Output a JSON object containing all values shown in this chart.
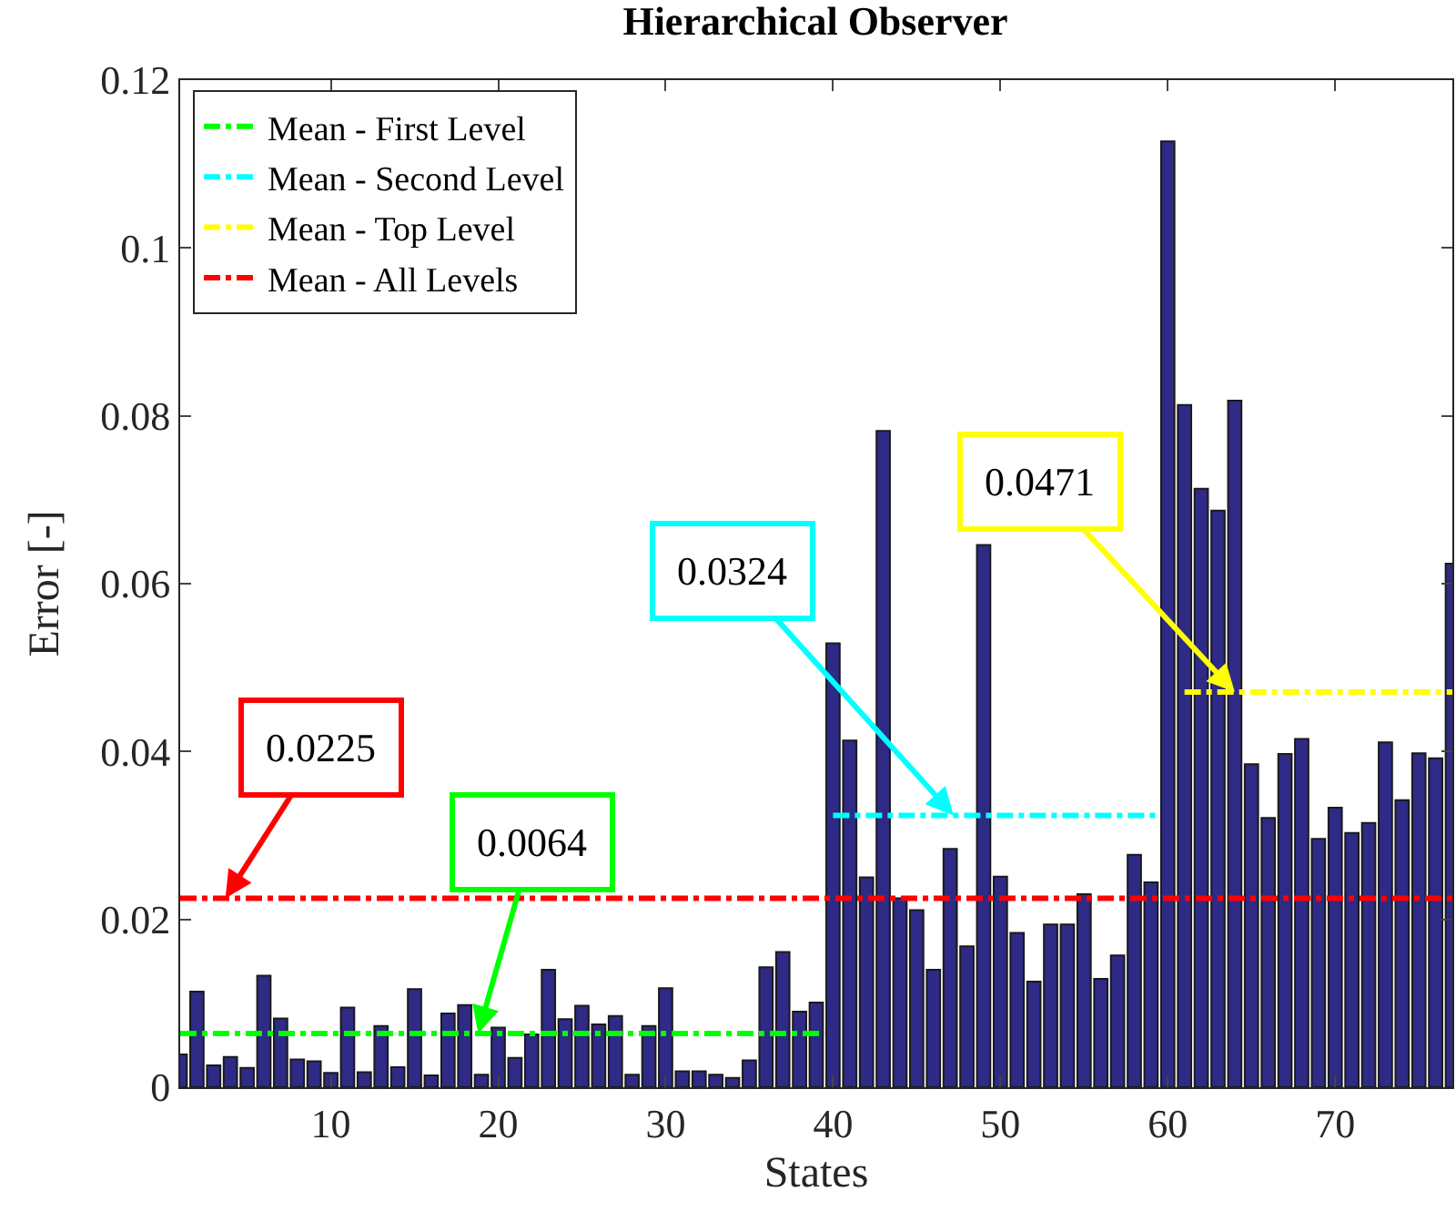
{
  "chart_data": {
    "type": "bar",
    "title": "Hierarchical Observer",
    "xlabel": "States",
    "ylabel": "Error [-]",
    "x": [
      1,
      2,
      3,
      4,
      5,
      6,
      7,
      8,
      9,
      10,
      11,
      12,
      13,
      14,
      15,
      16,
      17,
      18,
      19,
      20,
      21,
      22,
      23,
      24,
      25,
      26,
      27,
      28,
      29,
      30,
      31,
      32,
      33,
      34,
      35,
      36,
      37,
      38,
      39,
      40,
      41,
      42,
      43,
      44,
      45,
      46,
      47,
      48,
      49,
      50,
      51,
      52,
      53,
      54,
      55,
      56,
      57,
      58,
      59,
      60,
      61,
      62,
      63,
      64,
      65,
      66,
      67,
      68,
      69,
      70,
      71,
      72,
      73,
      74,
      75,
      76,
      77
    ],
    "series": [
      {
        "color": "#2e2a86",
        "values": [
          0.0039,
          0.0114,
          0.0026,
          0.0036,
          0.0023,
          0.0133,
          0.0082,
          0.0033,
          0.0031,
          0.0017,
          0.0095,
          0.0018,
          0.0073,
          0.0024,
          0.0117,
          0.0014,
          0.0088,
          0.0098,
          0.0015,
          0.0071,
          0.0035,
          0.0063,
          0.014,
          0.0081,
          0.0097,
          0.0075,
          0.0085,
          0.0015,
          0.0073,
          0.0118,
          0.0019,
          0.0019,
          0.0015,
          0.0011,
          0.0032,
          0.0143,
          0.0161,
          0.009,
          0.0101,
          0.0529,
          0.0413,
          0.025,
          0.0782,
          0.0225,
          0.0211,
          0.014,
          0.0284,
          0.0168,
          0.0646,
          0.0251,
          0.0184,
          0.0126,
          0.0194,
          0.0194,
          0.023,
          0.0129,
          0.0157,
          0.0277,
          0.0244,
          0.1127,
          0.0813,
          0.0713,
          0.0687,
          0.0818,
          0.0385,
          0.0321,
          0.0397,
          0.0415,
          0.0296,
          0.0333,
          0.0303,
          0.0315,
          0.0411,
          0.0342,
          0.0398,
          0.0392,
          0.0624
        ]
      },
      {
        "type": "line",
        "name": "Mean - First Level",
        "color": "#00ff00",
        "x": [
          1,
          39.5
        ],
        "values": [
          0.0064,
          0.0064
        ]
      },
      {
        "type": "line",
        "name": "Mean - Second Level",
        "color": "#00ffff",
        "x": [
          40,
          59.5
        ],
        "values": [
          0.0324,
          0.0324
        ]
      },
      {
        "type": "line",
        "name": "Mean - Top Level",
        "color": "#ffff00",
        "x": [
          61,
          77
        ],
        "values": [
          0.0471,
          0.0471
        ]
      },
      {
        "type": "line",
        "name": "Mean - All Levels",
        "color": "#ff0000",
        "x": [
          1,
          77
        ],
        "values": [
          0.0225,
          0.0225
        ]
      }
    ],
    "annotations": [
      {
        "text": "0.0064",
        "x": 18.8,
        "y": 0.0064
      },
      {
        "text": "0.0324",
        "x": 47.2,
        "y": 0.0324
      },
      {
        "text": "0.0471",
        "x": 64,
        "y": 0.0471
      },
      {
        "text": "0.0225",
        "x": 3.7,
        "y": 0.0225
      }
    ],
    "xlim": [
      1,
      77
    ],
    "xticks": [
      10,
      20,
      30,
      40,
      50,
      60,
      70
    ],
    "ylim": [
      0,
      0.12
    ],
    "yticks": [
      0,
      0.02,
      0.04,
      0.06,
      0.08,
      0.1,
      0.12
    ],
    "legend": "top left",
    "line_style": "dashdot"
  }
}
